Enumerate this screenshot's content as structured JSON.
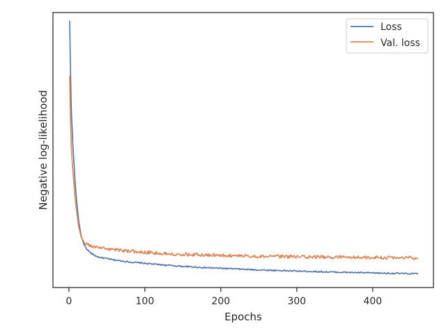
{
  "chart_data": {
    "type": "line",
    "title": "",
    "xlabel": "Epochs",
    "ylabel": "Negative log-likelihood",
    "xlim": [
      -21,
      480
    ],
    "ylim": [
      0.0,
      1.0
    ],
    "x_ticks": [
      0,
      100,
      200,
      300,
      400
    ],
    "y_ticks_shown": false,
    "grid": false,
    "legend_position": "top-right",
    "series": [
      {
        "name": "Loss",
        "color": "#4c72b0",
        "x": [
          1,
          2,
          3,
          5,
          8,
          10,
          13,
          16,
          20,
          25,
          30,
          35,
          40,
          50,
          60,
          80,
          100,
          125,
          150,
          175,
          200,
          250,
          300,
          350,
          400,
          460
        ],
        "y": [
          0.97,
          0.8,
          0.66,
          0.53,
          0.39,
          0.32,
          0.24,
          0.19,
          0.155,
          0.135,
          0.123,
          0.115,
          0.11,
          0.105,
          0.1,
          0.093,
          0.088,
          0.082,
          0.077,
          0.073,
          0.07,
          0.064,
          0.06,
          0.056,
          0.053,
          0.05
        ]
      },
      {
        "name": "Val. loss",
        "color": "#dd8452",
        "x": [
          1,
          2,
          3,
          5,
          8,
          10,
          13,
          16,
          20,
          25,
          30,
          35,
          40,
          50,
          60,
          80,
          100,
          125,
          150,
          175,
          200,
          250,
          300,
          350,
          400,
          460
        ],
        "y": [
          0.77,
          0.62,
          0.52,
          0.43,
          0.33,
          0.28,
          0.22,
          0.185,
          0.165,
          0.155,
          0.15,
          0.147,
          0.145,
          0.141,
          0.138,
          0.133,
          0.128,
          0.124,
          0.121,
          0.119,
          0.117,
          0.114,
          0.112,
          0.11,
          0.109,
          0.108
        ]
      }
    ]
  }
}
